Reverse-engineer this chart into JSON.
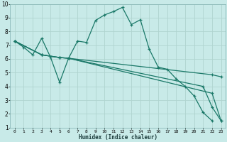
{
  "xlabel": "Humidex (Indice chaleur)",
  "bg_color": "#c8eae8",
  "grid_color": "#b0d4d0",
  "line_color": "#1a7868",
  "xlim": [
    -0.5,
    23.5
  ],
  "ylim": [
    1,
    10
  ],
  "xtick_labels": [
    "0",
    "1",
    "2",
    "3",
    "4",
    "5",
    "6",
    "7",
    "8",
    "9",
    "10",
    "11",
    "12",
    "13",
    "14",
    "15",
    "16",
    "17",
    "18",
    "19",
    "20",
    "21",
    "22",
    "23"
  ],
  "ytick_labels": [
    "1",
    "2",
    "3",
    "4",
    "5",
    "6",
    "7",
    "8",
    "9",
    "10"
  ],
  "lines": [
    {
      "x": [
        0,
        1,
        2,
        3,
        4,
        5,
        6,
        7,
        8,
        9,
        10,
        11,
        12,
        13,
        14,
        15,
        16,
        17,
        18,
        19,
        20,
        21,
        22
      ],
      "y": [
        7.3,
        6.85,
        6.3,
        7.5,
        6.1,
        4.3,
        6.05,
        7.3,
        7.2,
        8.8,
        9.2,
        9.45,
        9.75,
        8.5,
        8.85,
        6.7,
        5.4,
        5.25,
        4.55,
        4.0,
        3.3,
        2.1,
        1.5
      ]
    },
    {
      "x": [
        0,
        3,
        5,
        6,
        22,
        23
      ],
      "y": [
        7.3,
        6.3,
        6.1,
        6.05,
        4.85,
        4.7
      ]
    },
    {
      "x": [
        0,
        3,
        5,
        6,
        22,
        23
      ],
      "y": [
        7.3,
        6.3,
        6.1,
        6.05,
        3.5,
        1.5
      ]
    },
    {
      "x": [
        0,
        3,
        5,
        6,
        21,
        22,
        23
      ],
      "y": [
        7.3,
        6.3,
        6.1,
        6.05,
        4.0,
        2.5,
        1.5
      ]
    }
  ]
}
